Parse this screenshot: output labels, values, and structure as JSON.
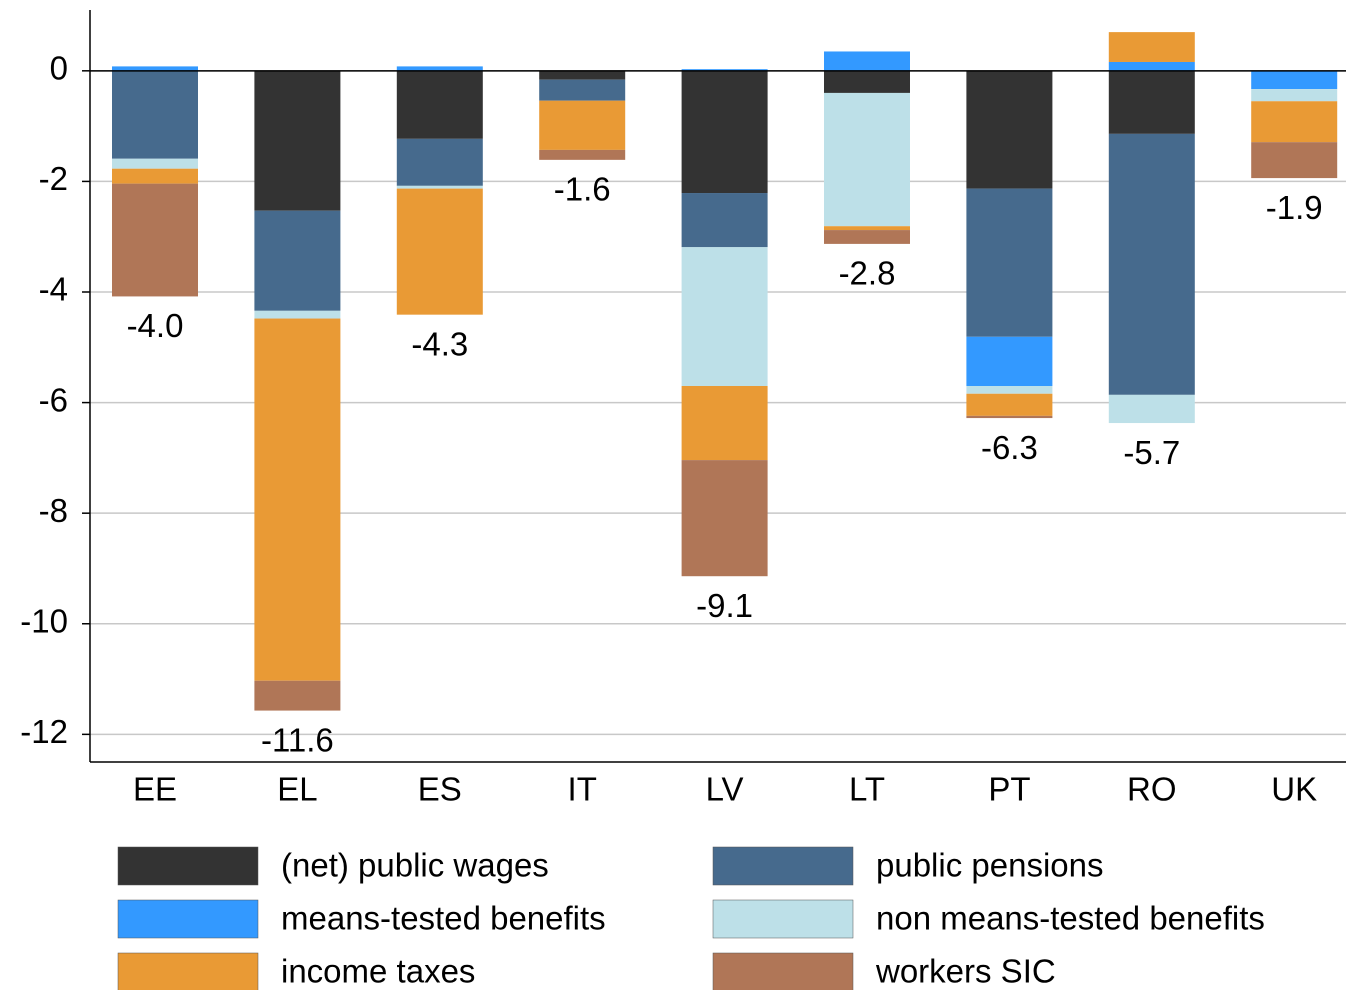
{
  "chart_data": {
    "type": "stacked-bar",
    "categories": [
      "EE",
      "EL",
      "ES",
      "IT",
      "LV",
      "LT",
      "PT",
      "RO",
      "UK"
    ],
    "series": [
      {
        "name": "(net) public wages",
        "color": "#333333",
        "values": [
          0,
          -2.53,
          -1.23,
          -0.16,
          -2.21,
          -0.4,
          -2.13,
          -1.14,
          0
        ]
      },
      {
        "name": "public pensions",
        "color": "#466a8d",
        "values": [
          -1.59,
          -1.81,
          -0.85,
          -0.38,
          -0.98,
          0,
          -2.68,
          -4.72,
          0
        ]
      },
      {
        "name": "means-tested benefits",
        "color": "#3399ff",
        "values": [
          0.08,
          0,
          0.08,
          0,
          0.03,
          0.35,
          -0.89,
          0.16,
          -0.33
        ]
      },
      {
        "name": "non means-tested benefits",
        "color": "#bde0e8",
        "values": [
          -0.18,
          -0.14,
          -0.05,
          0,
          -2.51,
          -2.41,
          -0.14,
          -0.51,
          -0.22
        ]
      },
      {
        "name": "income taxes",
        "color": "#e99a35",
        "values": [
          -0.27,
          -6.55,
          -2.28,
          -0.89,
          -1.34,
          -0.07,
          -0.4,
          0.54,
          -0.74
        ]
      },
      {
        "name": "workers SIC",
        "color": "#b07657",
        "values": [
          -2.04,
          -0.54,
          0,
          -0.18,
          -2.1,
          -0.25,
          -0.04,
          0,
          -0.65
        ]
      }
    ],
    "totals": [
      -4.0,
      -11.6,
      -4.3,
      -1.6,
      -9.1,
      -2.8,
      -6.3,
      -5.7,
      -1.9
    ],
    "total_labels": [
      "-4.0",
      "-11.6",
      "-4.3",
      "-1.6",
      "-9.1",
      "-2.8",
      "-6.3",
      "-5.7",
      "-1.9"
    ],
    "ylim": [
      -12.5,
      1.1
    ],
    "yticks": [
      -12,
      -10,
      -8,
      -6,
      -4,
      -2,
      0
    ],
    "grid": true
  }
}
